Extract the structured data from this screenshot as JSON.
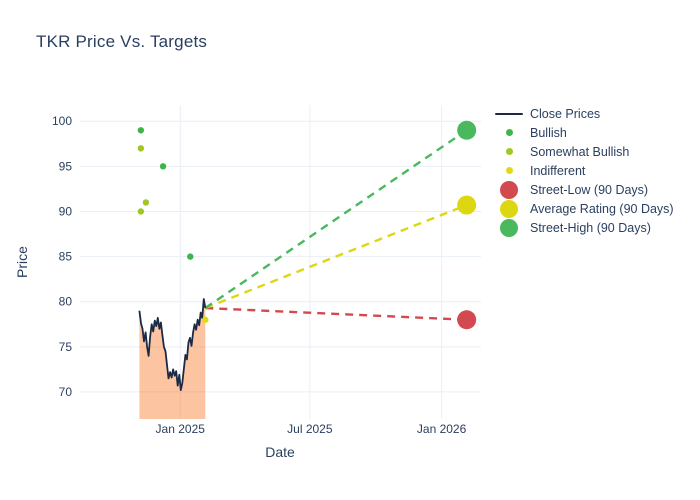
{
  "colors": {
    "text": "#2a3f5f",
    "grid": "#e9eef6",
    "plot_background": "#ffffff",
    "close_line": "#1c2a45",
    "close_fill": "rgba(248,125,45,0.45)",
    "bullish": "#3db54b",
    "somewhat_bullish": "#a2c625",
    "indifferent": "#e0da12",
    "street_low": "#d2494f",
    "average": "#ddd712",
    "street_high": "#4ab95d"
  },
  "chart_data": {
    "type": "line",
    "title": "TKR Price Vs. Targets",
    "xlabel": "Date",
    "ylabel": "Price",
    "axes": {
      "grid": true,
      "x_domain": [
        "2024-08-14",
        "2026-02-25"
      ],
      "y_domain": [
        67,
        101.8
      ],
      "x_ticks": [
        {
          "date": "2025-01-01",
          "label": "Jan 2025"
        },
        {
          "date": "2025-07-01",
          "label": "Jul 2025"
        },
        {
          "date": "2026-01-01",
          "label": "Jan 2026"
        }
      ],
      "y_ticks": [
        70,
        75,
        80,
        85,
        90,
        95,
        100
      ]
    },
    "close_prices": {
      "name": "Close Prices",
      "start_date": "2024-11-05",
      "end_date": "2025-02-05",
      "values": [
        79.0,
        77.6,
        77.0,
        75.6,
        76.6,
        75.0,
        74.0,
        76.2,
        77.5,
        76.7,
        77.9,
        77.3,
        78.2,
        77.0,
        77.7,
        76.3,
        75.0,
        74.5,
        73.0,
        71.5,
        72.2,
        71.6,
        72.5,
        71.8,
        72.3,
        70.7,
        71.9,
        70.2,
        71.0,
        72.6,
        74.1,
        73.6,
        75.5,
        76.0,
        75.1,
        76.6,
        77.5,
        76.9,
        78.0,
        77.4,
        78.8,
        78.2,
        80.3,
        79.3
      ]
    },
    "ratings": [
      {
        "label": "Bullish",
        "color_key": "bullish",
        "date": "2024-11-07",
        "price": 99
      },
      {
        "label": "Somewhat Bullish",
        "color_key": "somewhat_bullish",
        "date": "2024-11-07",
        "price": 97
      },
      {
        "label": "Somewhat Bullish",
        "color_key": "somewhat_bullish",
        "date": "2024-11-07",
        "price": 90
      },
      {
        "label": "Somewhat Bullish",
        "color_key": "somewhat_bullish",
        "date": "2024-11-14",
        "price": 91
      },
      {
        "label": "Bullish",
        "color_key": "bullish",
        "date": "2024-12-08",
        "price": 95
      },
      {
        "label": "Bullish",
        "color_key": "bullish",
        "date": "2025-01-15",
        "price": 85
      },
      {
        "label": "Indifferent",
        "color_key": "indifferent",
        "date": "2025-02-05",
        "price": 78
      }
    ],
    "targets": {
      "date": "2026-02-05",
      "series": [
        {
          "name": "Street-Low (90 Days)",
          "color_key": "street_low",
          "value": 78
        },
        {
          "name": "Average Rating (90 Days)",
          "color_key": "average",
          "value": 90.71
        },
        {
          "name": "Street-High (90 Days)",
          "color_key": "street_high",
          "value": 99
        }
      ]
    },
    "projections": {
      "style": "dashed",
      "from_date": "2025-02-05",
      "from_price": 79.3
    },
    "legend_position": "right"
  },
  "legend": {
    "items": [
      {
        "label": "Close Prices",
        "marker": "line",
        "color_key": "close_line"
      },
      {
        "label": "Bullish",
        "marker": "dot-small",
        "color_key": "bullish"
      },
      {
        "label": "Somewhat Bullish",
        "marker": "dot-small",
        "color_key": "somewhat_bullish"
      },
      {
        "label": "Indifferent",
        "marker": "dot-small",
        "color_key": "indifferent"
      },
      {
        "label": "Street-Low (90 Days)",
        "marker": "dot-large",
        "color_key": "street_low"
      },
      {
        "label": "Average Rating (90 Days)",
        "marker": "dot-large",
        "color_key": "average"
      },
      {
        "label": "Street-High (90 Days)",
        "marker": "dot-large",
        "color_key": "street_high"
      }
    ]
  }
}
